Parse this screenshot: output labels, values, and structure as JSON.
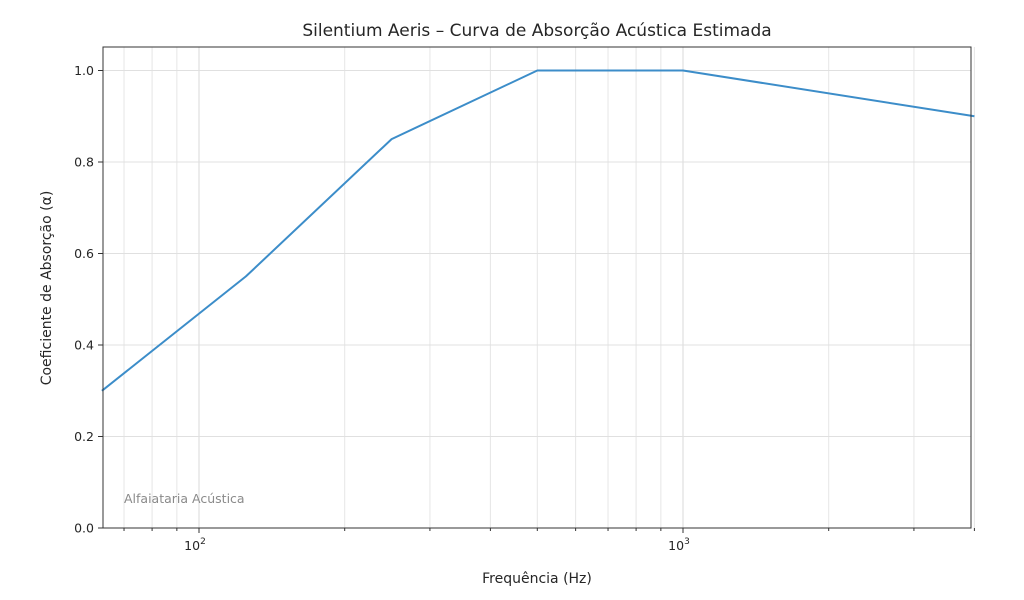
{
  "chart_data": {
    "type": "line",
    "title": "Silentium Aeris – Curva de Absorção Acústica Estimada",
    "xlabel": "Frequência (Hz)",
    "ylabel": "Coeficiente de Absorção (α)",
    "xscale": "log",
    "xlim": [
      63,
      4000
    ],
    "ylim": [
      0.0,
      1.05
    ],
    "grid": true,
    "x": [
      63,
      125,
      250,
      500,
      1000,
      4000
    ],
    "series": [
      {
        "name": "Silentium Aeris",
        "color": "#3c8dc9",
        "values": [
          0.3,
          0.55,
          0.85,
          1.0,
          1.0,
          0.9
        ]
      }
    ],
    "yticks": [
      0.0,
      0.2,
      0.4,
      0.6,
      0.8,
      1.0
    ],
    "ytick_labels": [
      "0.0",
      "0.2",
      "0.4",
      "0.6",
      "0.8",
      "1.0"
    ],
    "xtick_major": [
      100,
      1000
    ],
    "xtick_labels": [
      {
        "base": "10",
        "exp": "2"
      },
      {
        "base": "10",
        "exp": "3"
      }
    ],
    "annotation": "Alfaiataria Acústica"
  }
}
